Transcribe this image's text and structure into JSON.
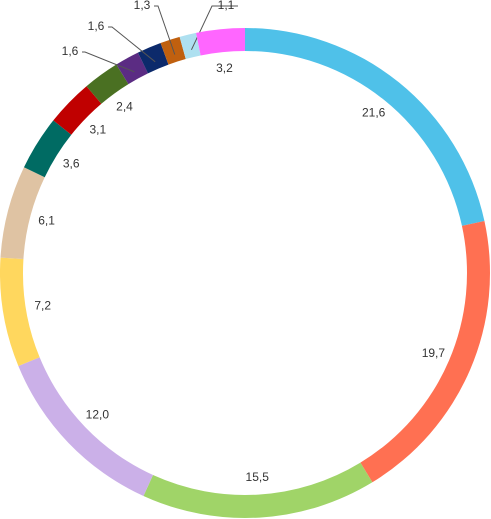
{
  "chart_data": {
    "type": "donut",
    "values": [
      21.6,
      19.7,
      15.5,
      12.0,
      7.2,
      6.1,
      3.6,
      3.1,
      2.4,
      1.6,
      1.6,
      1.3,
      1.1,
      3.2
    ],
    "value_labels": [
      "21,6",
      "19,7",
      "15,5",
      "12,0",
      "7,2",
      "6,1",
      "3,6",
      "3,1",
      "2,4",
      "1,6",
      "1,6",
      "1,3",
      "1,1",
      "3,2"
    ],
    "colors": [
      "#4fc1e9",
      "#ff7052",
      "#a0d468",
      "#cbb0e8",
      "#ffd75e",
      "#dfc3a3",
      "#006b63",
      "#c00000",
      "#4a7022",
      "#5b2c83",
      "#0c2a6b",
      "#c0600f",
      "#aee0f0",
      "#ff66ff"
    ]
  }
}
